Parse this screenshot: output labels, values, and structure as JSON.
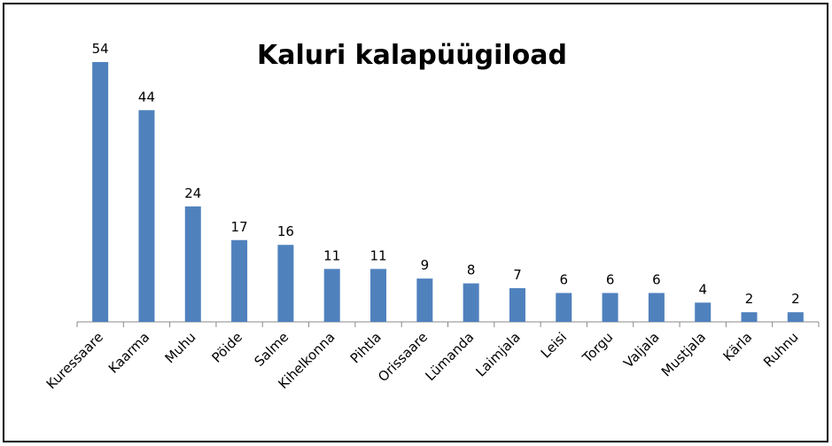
{
  "chart_data": {
    "type": "bar",
    "title": "Kaluri kalapüügiload",
    "categories": [
      "Kuressaare",
      "Kaarma",
      "Muhu",
      "Pöide",
      "Salme",
      "Kihelkonna",
      "Pihtla",
      "Orissaare",
      "Lümanda",
      "Laimjala",
      "Leisi",
      "Torgu",
      "Valjala",
      "Mustjala",
      "Kärla",
      "Ruhnu"
    ],
    "values": [
      54,
      44,
      24,
      17,
      16,
      11,
      11,
      9,
      8,
      7,
      6,
      6,
      6,
      4,
      2,
      2
    ],
    "color": "#4f81bd"
  }
}
